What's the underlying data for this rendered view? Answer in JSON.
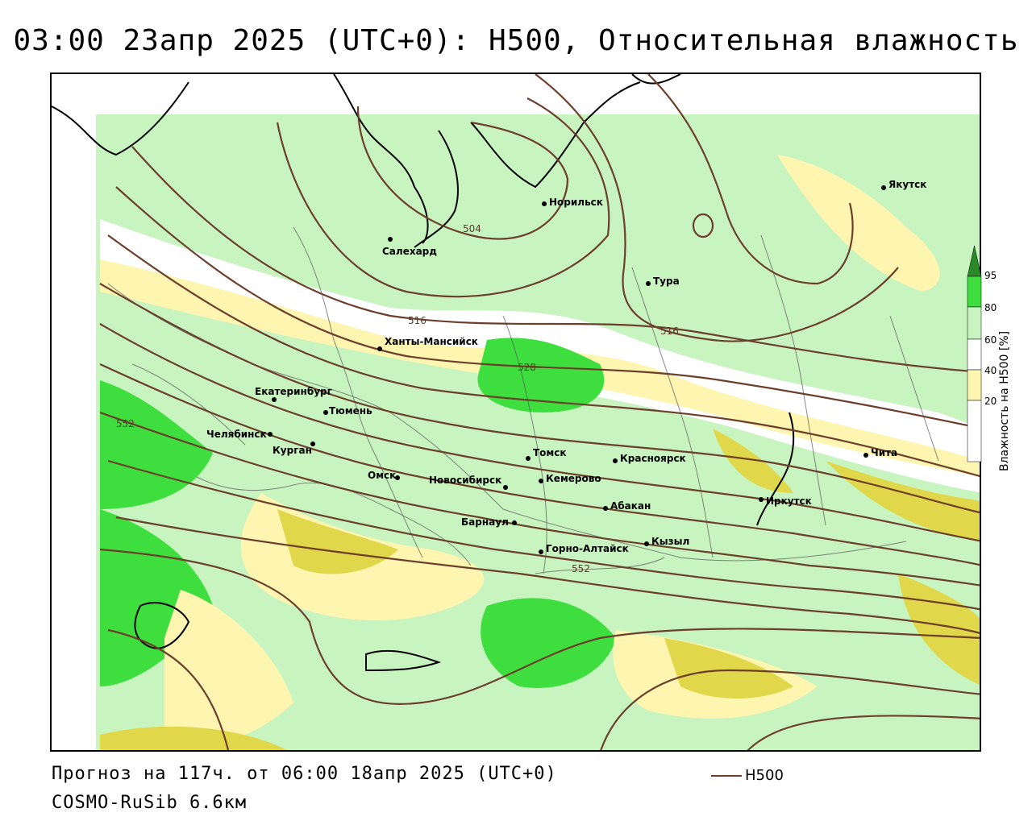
{
  "title": "03:00 23апр 2025 (UTC+0): H500, Относительная влажность",
  "footer": {
    "forecast": "Прогноз на 117ч. от 06:00 18апр 2025 (UTC+0)",
    "model": "COSMO-RuSib 6.6км"
  },
  "series_legend": {
    "label": "H500",
    "color": "#6b3f2b"
  },
  "colorbar": {
    "title": "Влажность на H500 [%]",
    "ticks": [
      "95",
      "80",
      "60",
      "40",
      "20"
    ],
    "colors": {
      "c95": "#2a8a2a",
      "c80": "#3dde3d",
      "c60": "#c8f4c0",
      "c40": "#ffffff",
      "c20": "#fdf5b0",
      "c0": "#e0d84a"
    }
  },
  "cities": [
    {
      "name": "Норильск"
    },
    {
      "name": "Якутск"
    },
    {
      "name": "Салехард"
    },
    {
      "name": "Тура"
    },
    {
      "name": "Ханты-Мансийск"
    },
    {
      "name": "Екатеринбург"
    },
    {
      "name": "Тюмень"
    },
    {
      "name": "Челябинск"
    },
    {
      "name": "Курган"
    },
    {
      "name": "Омск"
    },
    {
      "name": "Новосибирск"
    },
    {
      "name": "Томск"
    },
    {
      "name": "Кемерово"
    },
    {
      "name": "Красноярск"
    },
    {
      "name": "Абакан"
    },
    {
      "name": "Барнаул"
    },
    {
      "name": "Горно-Алтайск"
    },
    {
      "name": "Кызыл"
    },
    {
      "name": "Иркутск"
    },
    {
      "name": "Чита"
    }
  ],
  "contour_labels": [
    "504",
    "516",
    "516",
    "528",
    "552",
    "552"
  ]
}
